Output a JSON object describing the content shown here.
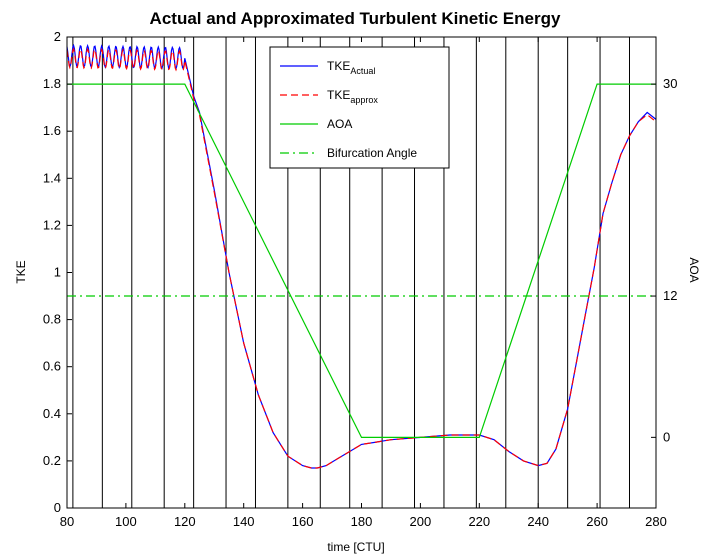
{
  "chart_data": {
    "type": "line",
    "title": "Actual and Approximated Turbulent Kinetic Energy",
    "xlabel": "time [CTU]",
    "ylabel": "TKE",
    "y2label": "AOA",
    "xlim": [
      80,
      280
    ],
    "ylim": [
      0,
      2
    ],
    "y2lim": [
      -6,
      34
    ],
    "x_ticks": [
      80,
      100,
      120,
      140,
      160,
      180,
      200,
      220,
      240,
      260,
      280
    ],
    "y_ticks": [
      0,
      0.2,
      0.4,
      0.6,
      0.8,
      1,
      1.2,
      1.4,
      1.6,
      1.8,
      2
    ],
    "y_tick_labels": [
      "0",
      "0.2",
      "0.4",
      "0.6",
      "0.8",
      "1",
      "1.2",
      "1.4",
      "1.6",
      "1.8",
      "2"
    ],
    "y2_ticks": [
      0,
      12,
      30
    ],
    "y2_tick_labels": [
      "0",
      "12",
      "30"
    ],
    "vertical_grid_x": [
      82,
      92,
      102,
      113,
      123,
      134,
      144,
      155,
      166,
      176,
      187,
      198,
      208,
      219,
      229,
      240,
      250,
      261,
      271
    ],
    "legend_position": "top-center",
    "legend": [
      {
        "main": "TKE",
        "sub": "Actual",
        "style": "solid",
        "color": "#0000ff"
      },
      {
        "main": "TKE",
        "sub": "approx",
        "style": "dashed",
        "color": "#ff0000"
      },
      {
        "main": "AOA",
        "sub": "",
        "style": "solid",
        "color": "#00cc00"
      },
      {
        "main": "Bifurcation Angle",
        "sub": "",
        "style": "dashdot",
        "color": "#00cc00"
      }
    ],
    "series": [
      {
        "name": "TKE_Actual",
        "axis": "left",
        "color": "#0000ff",
        "x": [
          80,
          120,
          123,
          125,
          130,
          135,
          140,
          145,
          150,
          155,
          160,
          163,
          165,
          168,
          172,
          176,
          180,
          185,
          190,
          200,
          210,
          220,
          225,
          230,
          235,
          240,
          243,
          246,
          250,
          253,
          256,
          259,
          262,
          265,
          268,
          271,
          274,
          277,
          280
        ],
        "y": [
          1.92,
          1.91,
          1.75,
          1.68,
          1.35,
          1.0,
          0.7,
          0.48,
          0.32,
          0.22,
          0.18,
          0.17,
          0.17,
          0.18,
          0.21,
          0.24,
          0.27,
          0.28,
          0.29,
          0.3,
          0.31,
          0.31,
          0.29,
          0.24,
          0.2,
          0.18,
          0.19,
          0.25,
          0.42,
          0.62,
          0.82,
          1.02,
          1.25,
          1.38,
          1.5,
          1.58,
          1.64,
          1.68,
          1.65
        ],
        "oscillation": {
          "x_range": [
            80,
            120
          ],
          "amplitude": 0.045,
          "period": 2.4
        }
      },
      {
        "name": "TKE_approx",
        "axis": "left",
        "color": "#ff0000",
        "x": [
          80,
          120,
          123,
          125,
          130,
          135,
          140,
          145,
          150,
          155,
          160,
          163,
          165,
          168,
          172,
          176,
          180,
          185,
          190,
          200,
          210,
          220,
          225,
          230,
          235,
          240,
          243,
          246,
          250,
          253,
          256,
          259,
          262,
          265,
          268,
          271,
          274,
          277,
          280
        ],
        "y": [
          1.91,
          1.9,
          1.74,
          1.67,
          1.34,
          1.0,
          0.7,
          0.48,
          0.32,
          0.22,
          0.18,
          0.17,
          0.17,
          0.18,
          0.21,
          0.24,
          0.27,
          0.28,
          0.29,
          0.3,
          0.31,
          0.31,
          0.29,
          0.24,
          0.2,
          0.18,
          0.19,
          0.25,
          0.42,
          0.62,
          0.82,
          1.02,
          1.25,
          1.38,
          1.5,
          1.58,
          1.64,
          1.67,
          1.64
        ],
        "oscillation": {
          "x_range": [
            80,
            120
          ],
          "amplitude": 0.04,
          "period": 2.4
        }
      },
      {
        "name": "AOA",
        "axis": "right",
        "color": "#00cc00",
        "x": [
          80,
          120,
          180,
          220,
          260,
          280
        ],
        "y": [
          30,
          30,
          0,
          0,
          30,
          30
        ]
      },
      {
        "name": "Bifurcation Angle",
        "axis": "right",
        "color": "#00cc00",
        "style": "dashdot",
        "x": [
          80,
          280
        ],
        "y": [
          12,
          12
        ]
      }
    ]
  }
}
